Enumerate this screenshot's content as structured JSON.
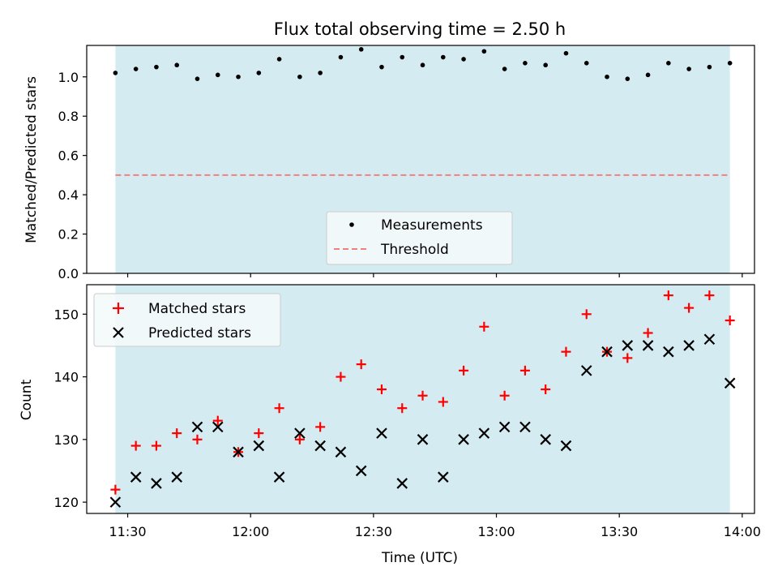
{
  "chart_data": [
    {
      "type": "scatter",
      "title": "Flux total observing time = 2.50 h",
      "xlabel": "",
      "ylabel": "Matched/Predicted stars",
      "ylim": [
        0,
        1.16
      ],
      "yticks": [
        "0.0",
        "0.2",
        "0.4",
        "0.6",
        "0.8",
        "1.0"
      ],
      "ytick_values": [
        0,
        0.2,
        0.4,
        0.6,
        0.8,
        1.0
      ],
      "shaded_span": [
        "11:27",
        "13:57"
      ],
      "shade_color": "#d4ebf1",
      "legend_position": "lower center",
      "series": [
        {
          "name": "Measurements",
          "marker": "dot",
          "color": "#000000",
          "x": [
            "11:27",
            "11:32",
            "11:37",
            "11:42",
            "11:47",
            "11:52",
            "11:57",
            "12:02",
            "12:07",
            "12:12",
            "12:17",
            "12:22",
            "12:27",
            "12:32",
            "12:37",
            "12:42",
            "12:47",
            "12:52",
            "12:57",
            "13:02",
            "13:07",
            "13:12",
            "13:17",
            "13:22",
            "13:27",
            "13:32",
            "13:37",
            "13:42",
            "13:47",
            "13:52",
            "13:57"
          ],
          "y": [
            1.02,
            1.04,
            1.05,
            1.06,
            0.99,
            1.01,
            1.0,
            1.02,
            1.09,
            1.0,
            1.02,
            1.1,
            1.14,
            1.05,
            1.1,
            1.06,
            1.1,
            1.09,
            1.13,
            1.04,
            1.07,
            1.06,
            1.12,
            1.07,
            1.0,
            0.99,
            1.01,
            1.07,
            1.04,
            1.05,
            1.07
          ]
        },
        {
          "name": "Threshold",
          "marker": "dashed-line",
          "color": "#f08080",
          "x": [
            "11:27",
            "13:57"
          ],
          "y": [
            0.5,
            0.5
          ]
        }
      ]
    },
    {
      "type": "scatter",
      "title": "",
      "xlabel": "Time (UTC)",
      "ylabel": "Count",
      "xlim": [
        "11:20",
        "14:03"
      ],
      "xticks": [
        "11:30",
        "12:00",
        "12:30",
        "13:00",
        "13:30",
        "14:00"
      ],
      "ylim": [
        118.2,
        154.7
      ],
      "yticks": [
        "120",
        "130",
        "140",
        "150"
      ],
      "ytick_values": [
        120,
        130,
        140,
        150
      ],
      "shaded_span": [
        "11:27",
        "13:57"
      ],
      "shade_color": "#d4ebf1",
      "legend_position": "upper left",
      "series": [
        {
          "name": "Matched stars",
          "marker": "plus",
          "color": "#ff0000",
          "x": [
            "11:27",
            "11:32",
            "11:37",
            "11:42",
            "11:47",
            "11:52",
            "11:57",
            "12:02",
            "12:07",
            "12:12",
            "12:17",
            "12:22",
            "12:27",
            "12:32",
            "12:37",
            "12:42",
            "12:47",
            "12:52",
            "12:57",
            "13:02",
            "13:07",
            "13:12",
            "13:17",
            "13:22",
            "13:27",
            "13:32",
            "13:37",
            "13:42",
            "13:47",
            "13:52",
            "13:57"
          ],
          "y": [
            122,
            129,
            129,
            131,
            130,
            133,
            128,
            131,
            135,
            130,
            132,
            140,
            142,
            138,
            135,
            137,
            136,
            141,
            148,
            137,
            141,
            138,
            144,
            150,
            144,
            143,
            147,
            153,
            151,
            153,
            149
          ]
        },
        {
          "name": "Predicted stars",
          "marker": "x",
          "color": "#000000",
          "x": [
            "11:27",
            "11:32",
            "11:37",
            "11:42",
            "11:47",
            "11:52",
            "11:57",
            "12:02",
            "12:07",
            "12:12",
            "12:17",
            "12:22",
            "12:27",
            "12:32",
            "12:37",
            "12:42",
            "12:47",
            "12:52",
            "12:57",
            "13:02",
            "13:07",
            "13:12",
            "13:17",
            "13:22",
            "13:27",
            "13:32",
            "13:37",
            "13:42",
            "13:47",
            "13:52",
            "13:57"
          ],
          "y": [
            120,
            124,
            123,
            124,
            132,
            132,
            128,
            129,
            124,
            131,
            129,
            128,
            125,
            131,
            123,
            130,
            124,
            130,
            131,
            132,
            132,
            130,
            129,
            141,
            144,
            145,
            145,
            144,
            145,
            146,
            139
          ]
        }
      ]
    }
  ]
}
